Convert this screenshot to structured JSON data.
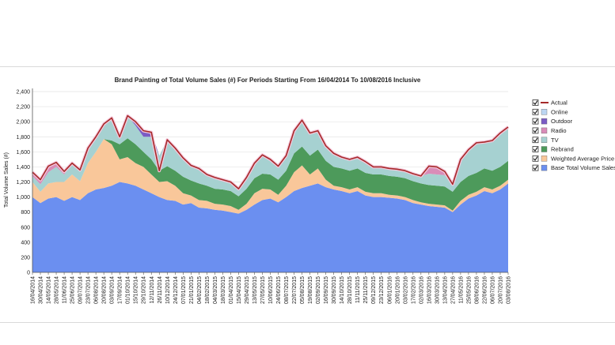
{
  "chart_data": {
    "type": "area",
    "title": "Brand Painting of Total Volume Sales (#) For Periods Starting From 16/04/2014 To 10/08/2016 Inclusive",
    "xlabel": "",
    "ylabel": "Total Volume Sales (#)",
    "ylim": [
      0,
      2400
    ],
    "yticks": [
      0,
      200,
      400,
      600,
      800,
      1000,
      1200,
      1400,
      1600,
      1800,
      2000,
      2200,
      2400
    ],
    "grid": true,
    "stacked": true,
    "legend_position": "right",
    "categories": [
      "16/04/2014",
      "30/04/2014",
      "14/05/2014",
      "28/05/2014",
      "11/06/2014",
      "25/06/2014",
      "09/07/2014",
      "23/07/2014",
      "06/08/2014",
      "20/08/2014",
      "03/09/2014",
      "17/09/2014",
      "01/10/2014",
      "15/10/2014",
      "29/10/2014",
      "12/11/2014",
      "26/11/2014",
      "10/12/2014",
      "24/12/2014",
      "07/01/2015",
      "21/01/2015",
      "04/02/2015",
      "18/02/2015",
      "04/03/2015",
      "18/03/2015",
      "01/04/2015",
      "15/04/2015",
      "29/04/2015",
      "13/05/2015",
      "27/05/2015",
      "10/06/2015",
      "24/06/2015",
      "08/07/2015",
      "22/07/2015",
      "05/08/2015",
      "19/08/2015",
      "02/09/2015",
      "16/09/2015",
      "30/09/2015",
      "14/10/2015",
      "28/10/2015",
      "11/11/2015",
      "25/11/2015",
      "09/12/2015",
      "23/12/2015",
      "06/01/2016",
      "20/01/2016",
      "03/02/2016",
      "17/02/2016",
      "02/03/2016",
      "16/03/2016",
      "30/03/2016",
      "13/04/2016",
      "27/04/2016",
      "11/05/2016",
      "25/05/2016",
      "08/06/2016",
      "22/06/2016",
      "06/07/2016",
      "20/07/2016",
      "03/08/2016"
    ],
    "series": [
      {
        "name": "Base Total Volume Sales",
        "color": "#6b8ff0",
        "values": [
          1000,
          920,
          980,
          1000,
          950,
          1000,
          960,
          1050,
          1100,
          1120,
          1150,
          1200,
          1180,
          1150,
          1100,
          1050,
          1000,
          960,
          950,
          900,
          920,
          860,
          850,
          830,
          820,
          800,
          780,
          830,
          900,
          960,
          980,
          930,
          1000,
          1080,
          1120,
          1150,
          1180,
          1130,
          1100,
          1080,
          1050,
          1080,
          1020,
          1000,
          1000,
          990,
          980,
          960,
          920,
          900,
          880,
          870,
          860,
          800,
          900,
          980,
          1020,
          1080,
          1050,
          1100,
          1180
        ]
      },
      {
        "name": "Weighted Average Price",
        "color": "#f9c79a",
        "values": [
          200,
          150,
          200,
          200,
          250,
          300,
          250,
          400,
          500,
          650,
          550,
          300,
          350,
          300,
          300,
          250,
          200,
          250,
          200,
          150,
          100,
          100,
          100,
          80,
          80,
          80,
          50,
          80,
          150,
          150,
          120,
          100,
          150,
          250,
          300,
          150,
          200,
          100,
          50,
          50,
          50,
          50,
          50,
          50,
          50,
          40,
          40,
          40,
          40,
          30,
          30,
          30,
          30,
          20,
          50,
          50,
          50,
          50,
          50,
          50,
          50
        ]
      },
      {
        "name": "Rebrand",
        "color": "#4d9a5b",
        "values": [
          0,
          0,
          0,
          0,
          0,
          0,
          0,
          0,
          0,
          0,
          50,
          200,
          250,
          250,
          200,
          200,
          150,
          200,
          200,
          220,
          200,
          220,
          200,
          200,
          200,
          200,
          180,
          200,
          200,
          200,
          200,
          200,
          200,
          250,
          250,
          250,
          250,
          250,
          250,
          250,
          250,
          250,
          250,
          250,
          250,
          250,
          250,
          250,
          250,
          250,
          250,
          250,
          250,
          250,
          250,
          250,
          250,
          250,
          250,
          250,
          250
        ]
      },
      {
        "name": "TV",
        "color": "#a6d1d1",
        "values": [
          80,
          100,
          150,
          200,
          100,
          150,
          150,
          200,
          200,
          200,
          300,
          100,
          300,
          250,
          200,
          300,
          200,
          350,
          300,
          250,
          200,
          200,
          150,
          150,
          130,
          120,
          100,
          150,
          200,
          250,
          200,
          180,
          200,
          300,
          350,
          300,
          250,
          200,
          180,
          150,
          150,
          150,
          150,
          100,
          100,
          100,
          100,
          100,
          100,
          100,
          150,
          150,
          150,
          100,
          300,
          350,
          400,
          350,
          400,
          450,
          450
        ]
      },
      {
        "name": "Radio",
        "color": "#d98cb8",
        "values": [
          50,
          60,
          80,
          60,
          40,
          0,
          0,
          0,
          0,
          0,
          0,
          0,
          0,
          0,
          0,
          0,
          0,
          0,
          0,
          0,
          0,
          0,
          0,
          0,
          0,
          0,
          0,
          0,
          0,
          0,
          0,
          0,
          0,
          0,
          0,
          0,
          0,
          0,
          0,
          0,
          0,
          0,
          0,
          0,
          0,
          0,
          0,
          0,
          0,
          0,
          100,
          100,
          50,
          0,
          0,
          0,
          0,
          0,
          0,
          0,
          0
        ]
      },
      {
        "name": "Outdoor",
        "color": "#7b5cc4",
        "values": [
          0,
          0,
          0,
          0,
          0,
          0,
          0,
          0,
          0,
          0,
          0,
          0,
          0,
          50,
          80,
          60,
          0,
          0,
          0,
          0,
          0,
          0,
          0,
          0,
          0,
          0,
          0,
          0,
          0,
          0,
          0,
          0,
          0,
          0,
          0,
          0,
          0,
          0,
          0,
          0,
          0,
          0,
          0,
          0,
          0,
          0,
          0,
          0,
          0,
          0,
          0,
          0,
          0,
          0,
          0,
          0,
          0,
          0,
          0,
          0,
          0
        ]
      },
      {
        "name": "Online",
        "color": "#bcd6f2",
        "values": [
          0,
          0,
          0,
          0,
          0,
          0,
          0,
          0,
          0,
          0,
          0,
          0,
          0,
          0,
          0,
          0,
          0,
          0,
          0,
          0,
          0,
          0,
          0,
          0,
          0,
          0,
          0,
          0,
          0,
          0,
          0,
          0,
          0,
          0,
          0,
          0,
          0,
          0,
          0,
          0,
          0,
          0,
          0,
          0,
          0,
          0,
          0,
          0,
          0,
          0,
          0,
          0,
          0,
          0,
          0,
          0,
          0,
          0,
          0,
          0,
          0
        ]
      }
    ],
    "actual": {
      "name": "Actual",
      "color": "#a52a2a",
      "values": [
        1330,
        1230,
        1410,
        1460,
        1340,
        1450,
        1360,
        1650,
        1800,
        1970,
        2050,
        1800,
        2080,
        2000,
        1880,
        1860,
        1350,
        1760,
        1650,
        1520,
        1420,
        1380,
        1300,
        1260,
        1230,
        1200,
        1110,
        1260,
        1450,
        1560,
        1500,
        1410,
        1550,
        1880,
        2020,
        1850,
        1880,
        1680,
        1580,
        1530,
        1500,
        1530,
        1470,
        1400,
        1400,
        1380,
        1370,
        1350,
        1310,
        1280,
        1410,
        1400,
        1340,
        1170,
        1500,
        1630,
        1720,
        1730,
        1750,
        1850,
        1930
      ]
    }
  },
  "legend": [
    {
      "label": "Actual",
      "kind": "line",
      "color": "#a52a2a",
      "checked": true
    },
    {
      "label": "Online",
      "kind": "box",
      "color": "#bcd6f2",
      "checked": true
    },
    {
      "label": "Outdoor",
      "kind": "box",
      "color": "#7b5cc4",
      "checked": true
    },
    {
      "label": "Radio",
      "kind": "box",
      "color": "#d98cb8",
      "checked": true
    },
    {
      "label": "TV",
      "kind": "box",
      "color": "#a6d1d1",
      "checked": true
    },
    {
      "label": "Rebrand",
      "kind": "box",
      "color": "#4d9a5b",
      "checked": true
    },
    {
      "label": "Weighted Average Price",
      "kind": "box",
      "color": "#f9c79a",
      "checked": true
    },
    {
      "label": "Base Total Volume Sales",
      "kind": "box",
      "color": "#6b8ff0",
      "checked": true
    }
  ]
}
